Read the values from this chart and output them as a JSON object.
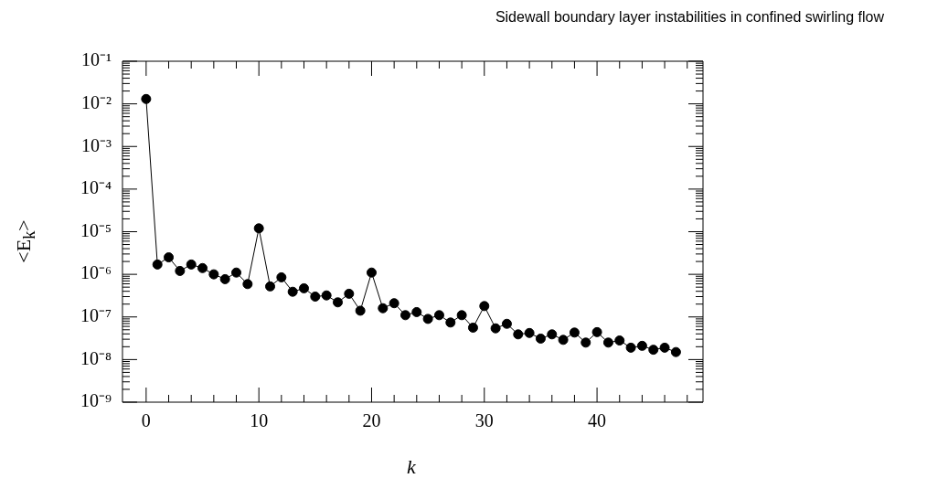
{
  "chart_data": {
    "type": "line",
    "title": "Sidewall boundary layer instabilities in confined swirling flow",
    "xlabel": "k",
    "ylabel": "<E$_{k}$>",
    "x": [
      0,
      1,
      2,
      3,
      4,
      5,
      6,
      7,
      8,
      9,
      10,
      11,
      12,
      13,
      14,
      15,
      16,
      17,
      18,
      19,
      20,
      21,
      22,
      23,
      24,
      25,
      26,
      27,
      28,
      29,
      30,
      31,
      32,
      33,
      34,
      35,
      36,
      37,
      38,
      39,
      40,
      41,
      42,
      43,
      44,
      45,
      46,
      47
    ],
    "series": [
      {
        "color": "#000000",
        "values": [
          0.013,
          1.7e-06,
          2.5e-06,
          1.2e-06,
          1.7e-06,
          1.4e-06,
          1e-06,
          7.7e-07,
          1.1e-06,
          5.9e-07,
          1.2e-05,
          5.2e-07,
          8.5e-07,
          3.9e-07,
          4.7e-07,
          3e-07,
          3.2e-07,
          2.2e-07,
          3.5e-07,
          1.4e-07,
          1.1e-06,
          1.6e-07,
          2.1e-07,
          1.1e-07,
          1.3e-07,
          9e-08,
          1.1e-07,
          7.4e-08,
          1.1e-07,
          5.6e-08,
          1.8e-07,
          5.4e-08,
          6.9e-08,
          3.9e-08,
          4.2e-08,
          3.1e-08,
          3.9e-08,
          2.9e-08,
          4.3e-08,
          2.5e-08,
          4.4e-08,
          2.5e-08,
          2.8e-08,
          1.9e-08,
          2.1e-08,
          1.7e-08,
          1.9e-08,
          1.5e-08
        ]
      }
    ],
    "log": "y",
    "marker": "circle",
    "line_style": "solid",
    "grid": false,
    "legend": false,
    "xlim": [
      -2.1,
      49.4
    ],
    "xticks": [
      0,
      {
        "value": 2,
        "label": null
      },
      {
        "value": 4,
        "label": null
      },
      {
        "value": 6,
        "label": null
      },
      {
        "value": 8,
        "label": null
      },
      10,
      {
        "value": 12,
        "label": null
      },
      {
        "value": 14,
        "label": null
      },
      {
        "value": 16,
        "label": null
      },
      {
        "value": 18,
        "label": null
      },
      20,
      {
        "value": 22,
        "label": null
      },
      {
        "value": 24,
        "label": null
      },
      {
        "value": 26,
        "label": null
      },
      {
        "value": 28,
        "label": null
      },
      30,
      {
        "value": 32,
        "label": null
      },
      {
        "value": 34,
        "label": null
      },
      {
        "value": 36,
        "label": null
      },
      {
        "value": 38,
        "label": null
      },
      40,
      {
        "value": 42,
        "label": null
      },
      {
        "value": 44,
        "label": null
      },
      {
        "value": 46,
        "label": null
      },
      {
        "value": 48,
        "label": null
      }
    ],
    "ylim": [
      1e-09,
      0.1
    ],
    "yticks": [
      {
        "value": 1e-09,
        "label": "10⁻⁹"
      },
      {
        "value": 1e-08,
        "label": "10⁻⁸"
      },
      {
        "value": 1e-07,
        "label": "10⁻⁷"
      },
      {
        "value": 1e-06,
        "label": "10⁻⁶"
      },
      {
        "value": 1e-05,
        "label": "10⁻⁵"
      },
      {
        "value": 0.0001,
        "label": "10⁻⁴"
      },
      {
        "value": 0.001,
        "label": "10⁻³"
      },
      {
        "value": 0.01,
        "label": "10⁻²"
      },
      {
        "value": 0.1,
        "label": "10⁻¹"
      }
    ]
  }
}
